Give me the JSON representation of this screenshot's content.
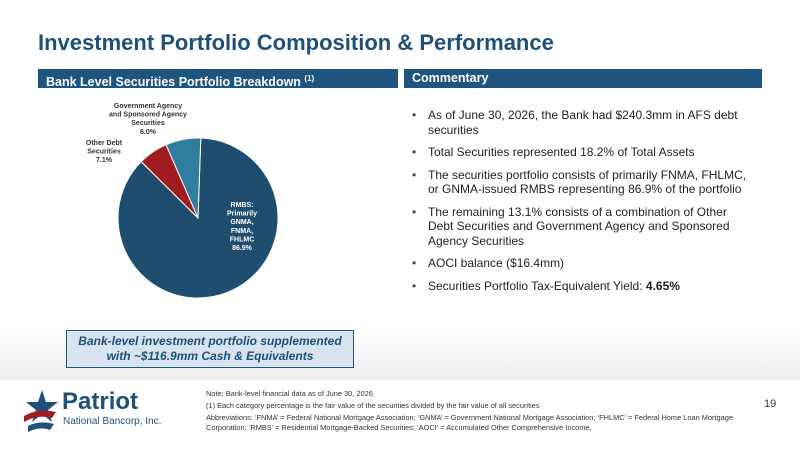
{
  "title": "Investment Portfolio Composition & Performance",
  "left_header": {
    "label": "Bank Level Securities Portfolio Breakdown",
    "sup": "(1)"
  },
  "right_header": {
    "label": "Commentary"
  },
  "chart_data": {
    "type": "pie",
    "slices": [
      {
        "label_lines": [
          "RMBS:",
          "Primarily",
          "GNMA,",
          "FNMA,",
          "FHLMC"
        ],
        "value": 86.9,
        "value_label": "86.9%",
        "color": "#1e4d70"
      },
      {
        "label_lines": [
          "Government Agency",
          "and Sponsored Agency",
          "Securities"
        ],
        "value": 6.0,
        "value_label": "6.0%",
        "color": "#a01c20"
      },
      {
        "label_lines": [
          "Other Debt",
          "Securities"
        ],
        "value": 7.1,
        "value_label": "7.1%",
        "color": "#2f7ea0"
      }
    ]
  },
  "commentary": [
    {
      "text": "As of June 30, 2026, the Bank had $240.3mm in AFS debt securities",
      "bold": ""
    },
    {
      "text": "Total Securities represented 18.2% of Total Assets",
      "bold": ""
    },
    {
      "text": "The securities portfolio consists of primarily FNMA, FHLMC, or GNMA-issued RMBS representing 86.9% of the portfolio",
      "bold": ""
    },
    {
      "text": "The remaining 13.1% consists of a combination of Other Debt Securities and Government Agency and Sponsored Agency Securities",
      "bold": ""
    },
    {
      "text": "AOCI balance ($16.4mm)",
      "bold": ""
    },
    {
      "text": "Securities Portfolio Tax-Equivalent Yield: ",
      "bold": "4.65%"
    }
  ],
  "callout": {
    "line1": "Bank-level investment portfolio supplemented",
    "line2": "with ~$116.9mm Cash & Equivalents"
  },
  "logo": {
    "name": "Patriot",
    "sub": "National Bancorp, Inc."
  },
  "notes": [
    "Note: Bank-level financial data as of June 30, 2026",
    "(1) Each category percentage is the fair value of the securities divided by the fair value of all securities",
    "Abbreviations: ‘FNMA’ = Federal National Mortgage Association; ‘GNMA’ = Government National Mortgage Association; ‘FHLMC’ = Federal Home Loan Mortgage Corporation; ‘RMBS’ = Residential Mortgage-Backed Securities; ‘AOCI’ = Accumulated Other Comprehensive Income,"
  ],
  "page_number": "19",
  "colors": {
    "brand": "#1f5078",
    "band": "#1e557e",
    "accent_red": "#a01c20"
  }
}
